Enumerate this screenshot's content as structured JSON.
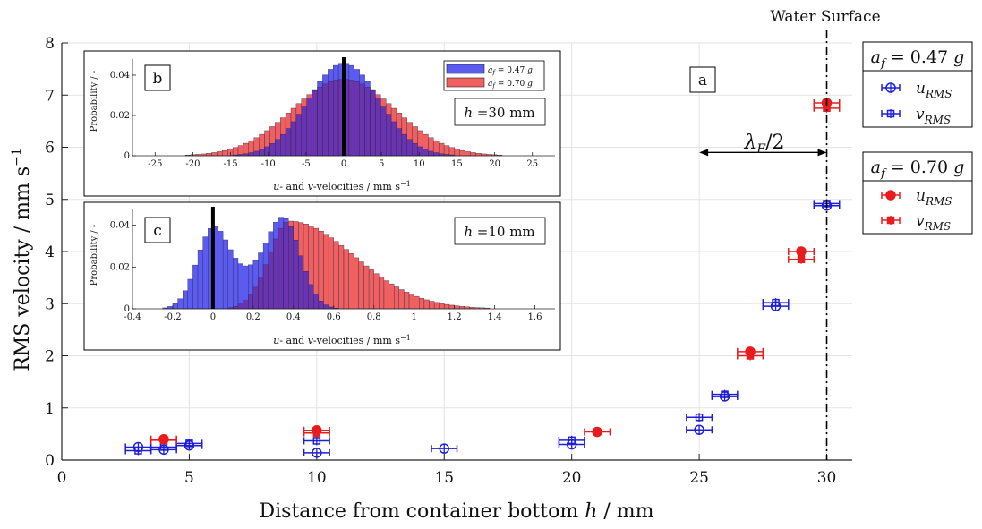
{
  "colors": {
    "u_047": "#1f1fd6",
    "u_070": "#e81c1c",
    "hist_blue": "#5b5bf0",
    "hist_red": "#f06060",
    "hist_overlap": "#6a34b0"
  },
  "chart_data": [
    {
      "id": "a",
      "type": "scatter",
      "panel_label": "a",
      "xlabel": "Distance from container bottom h / mm",
      "ylabel": "RMS velocity / mm s-1",
      "xlim": [
        0,
        31
      ],
      "ylim": [
        0,
        8
      ],
      "xticks": [
        0,
        5,
        10,
        15,
        20,
        25,
        30
      ],
      "yticks": [
        0,
        1,
        2,
        3,
        4,
        5,
        6,
        7,
        8
      ],
      "grid": true,
      "water_surface": {
        "x": 30,
        "label": "Water Surface"
      },
      "lambda_annotation": {
        "x_from": 25,
        "x_to": 30,
        "y": 5.9,
        "label": "λF/2"
      },
      "legends": [
        {
          "title": "af = 0.47 g",
          "entries": [
            "uRMS",
            "vRMS"
          ],
          "color": "#1f1fd6",
          "filled": false
        },
        {
          "title": "af = 0.70 g",
          "entries": [
            "uRMS",
            "vRMS"
          ],
          "color": "#e81c1c",
          "filled": true
        }
      ],
      "series": [
        {
          "name": "uRMS (af = 0.47 g)",
          "marker": "circle",
          "filled": false,
          "color": "#1f1fd6",
          "points": [
            {
              "x": 3,
              "y": 0.25,
              "xerr": 0.5
            },
            {
              "x": 4,
              "y": 0.2,
              "xerr": 0.5
            },
            {
              "x": 5,
              "y": 0.28,
              "xerr": 0.5
            },
            {
              "x": 10,
              "y": 0.14,
              "xerr": 0.5
            },
            {
              "x": 15,
              "y": 0.22,
              "xerr": 0.5
            },
            {
              "x": 20,
              "y": 0.3,
              "xerr": 0.5
            },
            {
              "x": 25,
              "y": 0.58,
              "xerr": 0.5
            },
            {
              "x": 26,
              "y": 1.22,
              "xerr": 0.5
            },
            {
              "x": 28,
              "y": 2.95,
              "xerr": 0.5
            },
            {
              "x": 30,
              "y": 4.88,
              "xerr": 0.5
            }
          ]
        },
        {
          "name": "vRMS (af = 0.47 g)",
          "marker": "square",
          "filled": false,
          "color": "#1f1fd6",
          "points": [
            {
              "x": 3,
              "y": 0.18,
              "xerr": 0.5
            },
            {
              "x": 4,
              "y": 0.25,
              "xerr": 0.5
            },
            {
              "x": 5,
              "y": 0.32,
              "xerr": 0.5
            },
            {
              "x": 10,
              "y": 0.37,
              "xerr": 0.5
            },
            {
              "x": 20,
              "y": 0.38,
              "xerr": 0.5
            },
            {
              "x": 25,
              "y": 0.82,
              "xerr": 0.5
            },
            {
              "x": 26,
              "y": 1.26,
              "xerr": 0.5
            },
            {
              "x": 28,
              "y": 3.02,
              "xerr": 0.5
            },
            {
              "x": 30,
              "y": 4.92,
              "xerr": 0.5
            }
          ]
        },
        {
          "name": "uRMS (af = 0.70 g)",
          "marker": "circle",
          "filled": true,
          "color": "#e81c1c",
          "points": [
            {
              "x": 4,
              "y": 0.4,
              "xerr": 0.5
            },
            {
              "x": 10,
              "y": 0.57,
              "xerr": 0.5
            },
            {
              "x": 21,
              "y": 0.54,
              "xerr": 0.5
            },
            {
              "x": 27,
              "y": 2.08,
              "xerr": 0.5
            },
            {
              "x": 29,
              "y": 4.0,
              "xerr": 0.5
            },
            {
              "x": 30,
              "y": 6.85,
              "xerr": 0.5
            }
          ]
        },
        {
          "name": "vRMS (af = 0.70 g)",
          "marker": "square",
          "filled": true,
          "color": "#e81c1c",
          "points": [
            {
              "x": 4,
              "y": 0.38,
              "xerr": 0.5
            },
            {
              "x": 10,
              "y": 0.52,
              "xerr": 0.5
            },
            {
              "x": 27,
              "y": 2.0,
              "xerr": 0.5
            },
            {
              "x": 29,
              "y": 3.85,
              "xerr": 0.5
            },
            {
              "x": 30,
              "y": 6.75,
              "xerr": 0.5
            }
          ]
        }
      ]
    },
    {
      "id": "b",
      "type": "bar",
      "panel_label": "b",
      "annotation": "h = 30 mm",
      "xlabel": "u- and v-velocities / mm s-1",
      "ylabel": "Probability / -",
      "xlim": [
        -28,
        28
      ],
      "ylim": [
        0,
        0.048
      ],
      "xticks": [
        -25,
        -20,
        -15,
        -10,
        -5,
        0,
        5,
        10,
        15,
        20,
        25
      ],
      "ytick_labels": [
        "0",
        "0.02",
        "0.04"
      ],
      "bin_width": 0.7,
      "marker_line_x": 0,
      "legend": [
        "af = 0.47 g",
        "af = 0.70 g"
      ],
      "series": [
        {
          "name": "af = 0.47 g",
          "dist": "normal",
          "peak": 0.046,
          "mean": 0,
          "sigma": 4.7
        },
        {
          "name": "af = 0.70 g",
          "dist": "normal",
          "peak": 0.038,
          "mean": 0,
          "sigma": 6.8
        }
      ]
    },
    {
      "id": "c",
      "type": "bar",
      "panel_label": "c",
      "annotation": "h = 10 mm",
      "xlabel": "u- and v-velocities / mm s-1",
      "ylabel": "Probability / -",
      "xlim": [
        -0.4,
        1.7
      ],
      "ylim": [
        0,
        0.048
      ],
      "xticks": [
        -0.4,
        -0.2,
        0,
        0.2,
        0.4,
        0.6,
        0.8,
        1,
        1.2,
        1.4,
        1.6
      ],
      "ytick_labels": [
        "0",
        "0.02",
        "0.04"
      ],
      "bin_width": 0.025,
      "marker_line_x": 0,
      "series": [
        {
          "name": "af = 0.47 g",
          "dist": "mixture",
          "components": [
            {
              "amp": 0.038,
              "mean": 0.0,
              "sigma": 0.08
            },
            {
              "amp": 0.043,
              "mean": 0.35,
              "sigma": 0.085
            },
            {
              "amp": 0.012,
              "mean": 0.17,
              "sigma": 0.08
            }
          ]
        },
        {
          "name": "af = 0.70 g",
          "dist": "skewed",
          "peak": 0.042,
          "mean": 0.38,
          "sigma_left": 0.1,
          "sigma_right": 0.32
        }
      ]
    }
  ]
}
